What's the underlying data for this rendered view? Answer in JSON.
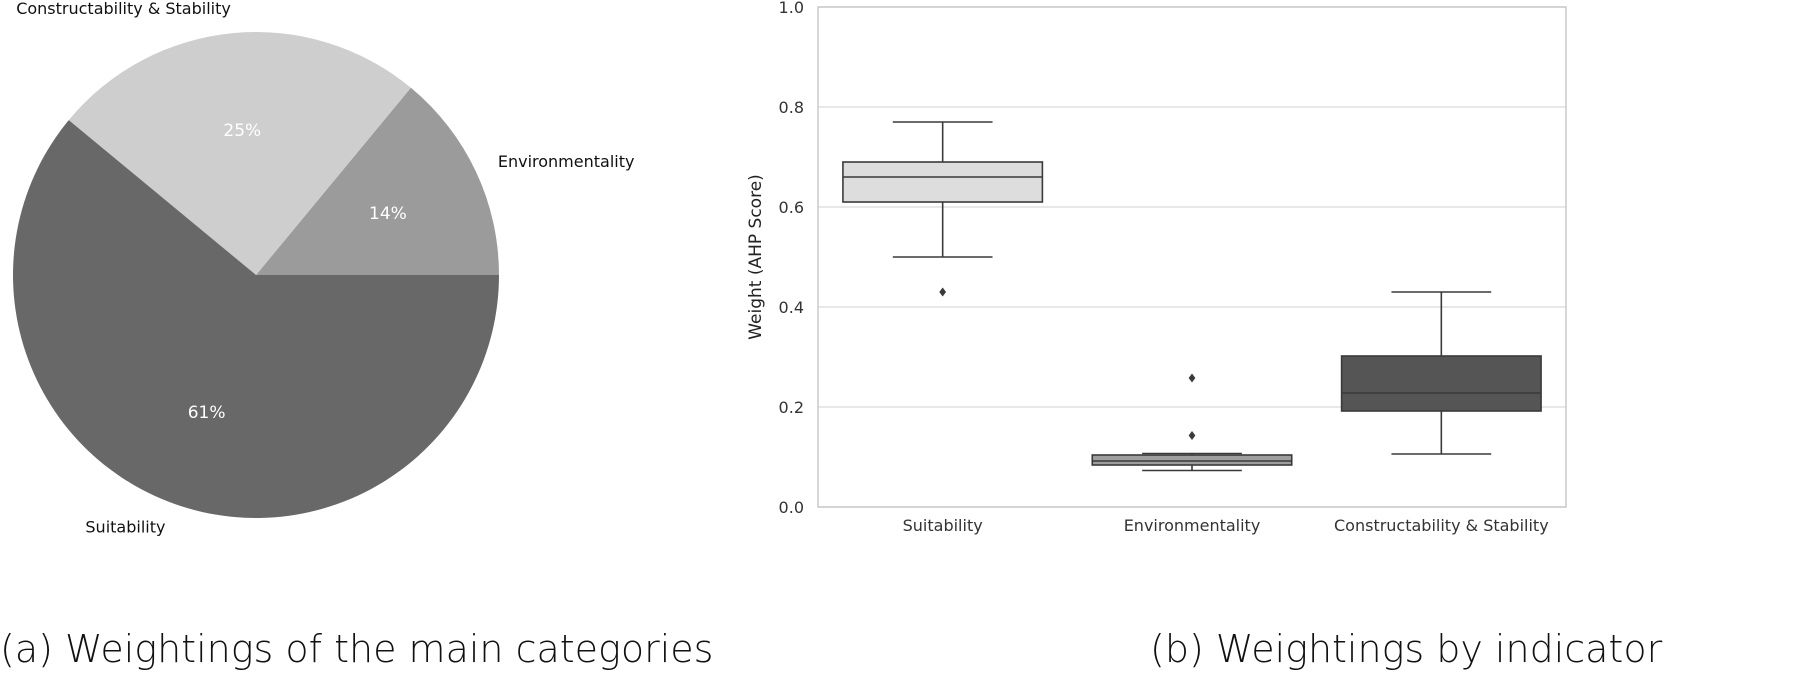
{
  "captions": {
    "a": "(a) Weightings of the main categories",
    "b": "(b) Weightings by indicator"
  },
  "colors": {
    "suitability": "#686868",
    "environmentality": "#9b9b9b",
    "constructability": "#cecece",
    "box_suitability": "#dddddd",
    "box_environmentality": "#9e9e9e",
    "box_constructability": "#555555",
    "grid": "#d9d9d9",
    "axis": "#c6c6c6",
    "text": "#333333",
    "pct_text": "#ffffff"
  },
  "chart_data": [
    {
      "type": "pie",
      "title": "",
      "start_angle_deg": 0,
      "direction": "counterclockwise",
      "slices": [
        {
          "label": "Environmentality",
          "pct_label": "14%",
          "value": 14,
          "color_key": "environmentality"
        },
        {
          "label": "Constructability & Stability",
          "pct_label": "25%",
          "value": 25,
          "color_key": "constructability"
        },
        {
          "label": "Suitability",
          "pct_label": "61%",
          "value": 61,
          "color_key": "suitability"
        }
      ]
    },
    {
      "type": "box",
      "title": "",
      "xlabel": "",
      "ylabel": "Weight (AHP Score)",
      "ylim": [
        0.0,
        1.0
      ],
      "yticks": [
        "0.0",
        "0.2",
        "0.4",
        "0.6",
        "0.8",
        "1.0"
      ],
      "ytick_values": [
        0.0,
        0.2,
        0.4,
        0.6,
        0.8,
        1.0
      ],
      "grid": "horizontal",
      "categories": [
        "Suitability",
        "Environmentality",
        "Constructability & Stability"
      ],
      "boxes": [
        {
          "category": "Suitability",
          "whisker_low": 0.5,
          "q1": 0.61,
          "median": 0.66,
          "q3": 0.69,
          "whisker_high": 0.77,
          "outliers": [
            0.43
          ],
          "color_key": "box_suitability"
        },
        {
          "category": "Environmentality",
          "whisker_low": 0.073,
          "q1": 0.084,
          "median": 0.092,
          "q3": 0.104,
          "whisker_high": 0.107,
          "outliers": [
            0.143,
            0.258
          ],
          "color_key": "box_environmentality"
        },
        {
          "category": "Constructability & Stability",
          "whisker_low": 0.106,
          "q1": 0.192,
          "median": 0.228,
          "q3": 0.302,
          "whisker_high": 0.43,
          "outliers": [],
          "color_key": "box_constructability"
        }
      ]
    }
  ]
}
